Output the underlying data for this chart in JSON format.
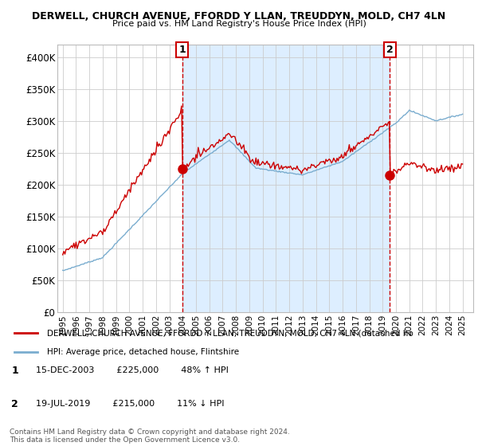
{
  "title": "DERWELL, CHURCH AVENUE, FFORDD Y LLAN, TREUDDYN, MOLD, CH7 4LN",
  "subtitle": "Price paid vs. HM Land Registry's House Price Index (HPI)",
  "legend_line1": "DERWELL, CHURCH AVENUE, FFORDD Y LLAN, TREUDDYN, MOLD, CH7 4LN (detached ho",
  "legend_line2": "HPI: Average price, detached house, Flintshire",
  "annotation1_label": "1",
  "annotation1_date": "15-DEC-2003",
  "annotation1_price": "£225,000",
  "annotation1_hpi": "48% ↑ HPI",
  "annotation2_label": "2",
  "annotation2_date": "19-JUL-2019",
  "annotation2_price": "£215,000",
  "annotation2_hpi": "11% ↓ HPI",
  "footer": "Contains HM Land Registry data © Crown copyright and database right 2024.\nThis data is licensed under the Open Government Licence v3.0.",
  "red_color": "#cc0000",
  "blue_color": "#7aadcf",
  "shade_color": "#ddeeff",
  "bg_color": "#ffffff",
  "grid_color": "#cccccc",
  "ylim": [
    0,
    420000
  ],
  "yticks": [
    0,
    50000,
    100000,
    150000,
    200000,
    250000,
    300000,
    350000,
    400000
  ],
  "ytick_labels": [
    "£0",
    "£50K",
    "£100K",
    "£150K",
    "£200K",
    "£250K",
    "£300K",
    "£350K",
    "£400K"
  ],
  "sale1_x": 2003.96,
  "sale1_y": 225000,
  "sale2_x": 2019.54,
  "sale2_y": 215000,
  "vline1_x": 2003.96,
  "vline2_x": 2019.54,
  "xlim_left": 1994.6,
  "xlim_right": 2025.8
}
